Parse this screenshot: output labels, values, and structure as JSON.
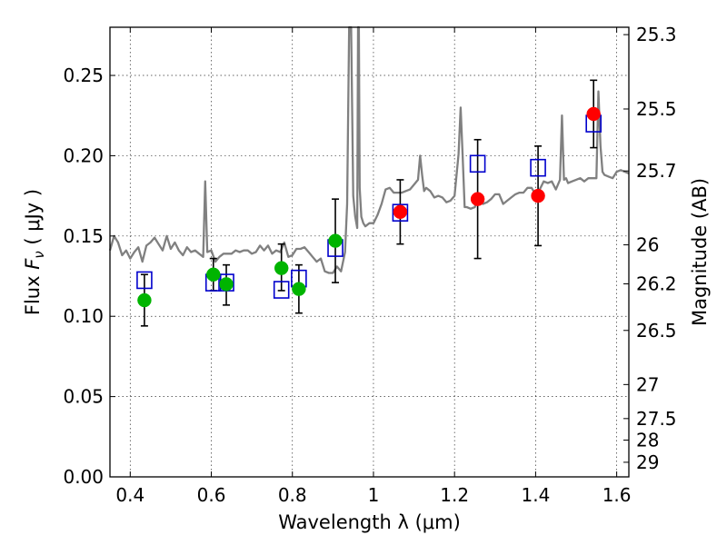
{
  "chart_data": {
    "type": "scatter",
    "xlabel": "Wavelength  λ (μm)",
    "ylabel": "Flux  F_ν  ( μJy )",
    "ylabel_parts": {
      "prefix": "Flux  ",
      "symbol": "F",
      "subscript": "ν",
      "suffix": "  ( μJy )"
    },
    "y2label": "Magnitude (AB)",
    "xlim": [
      0.35,
      1.63
    ],
    "ylim": [
      0.0,
      0.28
    ],
    "x_ticks": [
      0.4,
      0.6,
      0.8,
      1.0,
      1.2,
      1.4,
      1.6
    ],
    "x_tick_labels": [
      "0.4",
      "0.6",
      "0.8",
      "1",
      "1.2",
      "1.4",
      "1.6"
    ],
    "y_ticks": [
      0.0,
      0.05,
      0.1,
      0.15,
      0.2,
      0.25
    ],
    "y_tick_labels": [
      "0.00",
      "0.05",
      "0.10",
      "0.15",
      "0.20",
      "0.25"
    ],
    "y2_ticks": [
      {
        "label": "25.3",
        "flux": 0.2754
      },
      {
        "label": "25.5",
        "flux": 0.2291
      },
      {
        "label": "25.7",
        "flux": 0.1905
      },
      {
        "label": "26",
        "flux": 0.1445
      },
      {
        "label": "26.2",
        "flux": 0.1202
      },
      {
        "label": "26.5",
        "flux": 0.0912
      },
      {
        "label": "27",
        "flux": 0.0575
      },
      {
        "label": "27.5",
        "flux": 0.0363
      },
      {
        "label": "28",
        "flux": 0.0229
      },
      {
        "label": "29",
        "flux": 0.0091
      }
    ],
    "grid": true,
    "colors": {
      "model": "#808080",
      "model_photometry": "#0000cc",
      "optical": "#00b400",
      "nir": "#ff0000",
      "errorbar": "#000000"
    },
    "series": [
      {
        "kind": "model_spectrum",
        "x": [
          0.35,
          0.36,
          0.37,
          0.38,
          0.39,
          0.4,
          0.41,
          0.42,
          0.43,
          0.44,
          0.45,
          0.46,
          0.47,
          0.48,
          0.49,
          0.5,
          0.51,
          0.52,
          0.53,
          0.54,
          0.55,
          0.56,
          0.57,
          0.58,
          0.585,
          0.59,
          0.6,
          0.61,
          0.62,
          0.63,
          0.64,
          0.65,
          0.66,
          0.67,
          0.68,
          0.69,
          0.7,
          0.71,
          0.72,
          0.73,
          0.74,
          0.75,
          0.76,
          0.77,
          0.78,
          0.79,
          0.8,
          0.81,
          0.82,
          0.83,
          0.84,
          0.85,
          0.86,
          0.87,
          0.88,
          0.89,
          0.9,
          0.91,
          0.92,
          0.93,
          0.935,
          0.94,
          0.945,
          0.95,
          0.955,
          0.96,
          0.962,
          0.964,
          0.966,
          0.97,
          0.975,
          0.98,
          0.99,
          1.0,
          1.01,
          1.02,
          1.03,
          1.04,
          1.05,
          1.06,
          1.07,
          1.08,
          1.09,
          1.1,
          1.11,
          1.115,
          1.12,
          1.125,
          1.13,
          1.14,
          1.15,
          1.16,
          1.17,
          1.18,
          1.19,
          1.2,
          1.21,
          1.215,
          1.22,
          1.225,
          1.23,
          1.24,
          1.25,
          1.26,
          1.27,
          1.28,
          1.29,
          1.3,
          1.31,
          1.32,
          1.33,
          1.34,
          1.35,
          1.36,
          1.37,
          1.38,
          1.39,
          1.4,
          1.41,
          1.42,
          1.43,
          1.44,
          1.45,
          1.46,
          1.465,
          1.47,
          1.475,
          1.48,
          1.49,
          1.5,
          1.51,
          1.52,
          1.53,
          1.54,
          1.55,
          1.555,
          1.56,
          1.565,
          1.57,
          1.58,
          1.59,
          1.6,
          1.61,
          1.62,
          1.63
        ],
        "y": [
          0.141,
          0.15,
          0.146,
          0.138,
          0.141,
          0.136,
          0.14,
          0.143,
          0.134,
          0.144,
          0.146,
          0.149,
          0.145,
          0.141,
          0.15,
          0.142,
          0.146,
          0.141,
          0.138,
          0.143,
          0.14,
          0.141,
          0.139,
          0.137,
          0.184,
          0.14,
          0.141,
          0.134,
          0.137,
          0.139,
          0.139,
          0.139,
          0.141,
          0.14,
          0.141,
          0.141,
          0.139,
          0.14,
          0.144,
          0.141,
          0.144,
          0.139,
          0.141,
          0.14,
          0.146,
          0.137,
          0.138,
          0.142,
          0.142,
          0.143,
          0.14,
          0.137,
          0.134,
          0.136,
          0.128,
          0.127,
          0.127,
          0.131,
          0.128,
          0.14,
          0.17,
          0.28,
          0.28,
          0.175,
          0.162,
          0.155,
          0.28,
          0.28,
          0.18,
          0.162,
          0.158,
          0.156,
          0.158,
          0.158,
          0.163,
          0.17,
          0.179,
          0.18,
          0.177,
          0.177,
          0.177,
          0.178,
          0.179,
          0.182,
          0.185,
          0.2,
          0.188,
          0.178,
          0.18,
          0.178,
          0.174,
          0.175,
          0.174,
          0.171,
          0.172,
          0.175,
          0.201,
          0.23,
          0.2,
          0.168,
          0.168,
          0.167,
          0.168,
          0.176,
          0.17,
          0.171,
          0.173,
          0.176,
          0.176,
          0.17,
          0.172,
          0.174,
          0.176,
          0.177,
          0.177,
          0.18,
          0.18,
          0.176,
          0.179,
          0.184,
          0.183,
          0.184,
          0.179,
          0.185,
          0.225,
          0.185,
          0.186,
          0.183,
          0.184,
          0.185,
          0.186,
          0.184,
          0.186,
          0.186,
          0.186,
          0.24,
          0.206,
          0.19,
          0.188,
          0.187,
          0.186,
          0.19,
          0.191,
          0.19,
          0.189
        ]
      },
      {
        "kind": "model_photometry",
        "name": "",
        "x": [
          0.435,
          0.605,
          0.637,
          0.773,
          0.816,
          0.906,
          1.066,
          1.257,
          1.406,
          1.543
        ],
        "y": [
          0.1225,
          0.121,
          0.121,
          0.1165,
          0.1235,
          0.1425,
          0.1645,
          0.195,
          0.1925,
          0.22
        ]
      },
      {
        "kind": "optical_observed",
        "name": "",
        "x": [
          0.435,
          0.605,
          0.637,
          0.773,
          0.816,
          0.906
        ],
        "y": [
          0.11,
          0.126,
          0.12,
          0.13,
          0.117,
          0.147
        ],
        "yerr_low": [
          0.016,
          0.01,
          0.013,
          0.014,
          0.015,
          0.026
        ],
        "yerr_high": [
          0.016,
          0.01,
          0.012,
          0.015,
          0.015,
          0.026
        ]
      },
      {
        "kind": "nir_observed",
        "name": "",
        "x": [
          1.066,
          1.257,
          1.406,
          1.543
        ],
        "y": [
          0.165,
          0.173,
          0.175,
          0.226
        ],
        "yerr_low": [
          0.02,
          0.037,
          0.031,
          0.021
        ],
        "yerr_high": [
          0.02,
          0.037,
          0.031,
          0.021
        ]
      }
    ]
  }
}
